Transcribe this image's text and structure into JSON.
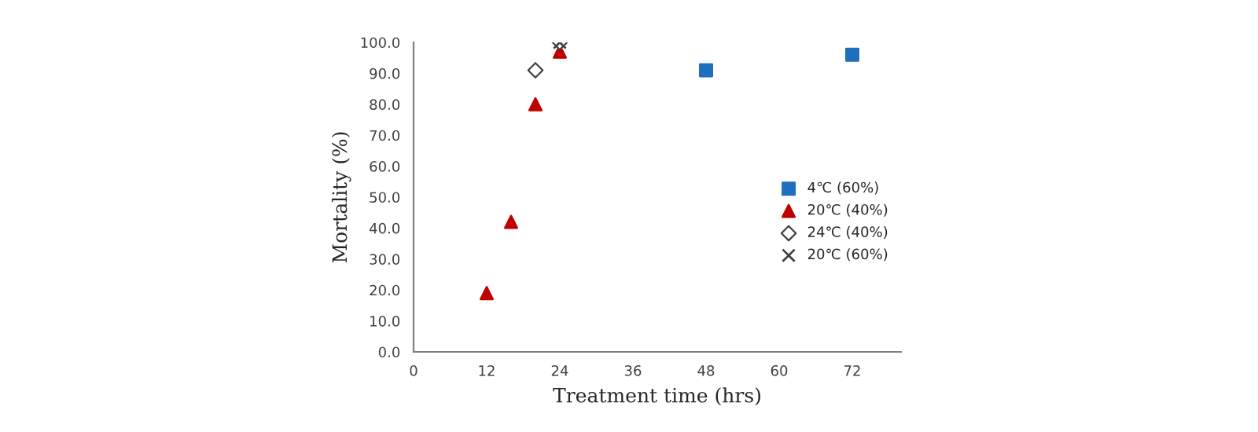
{
  "chart_data": {
    "type": "scatter",
    "xlabel": "Treatment time (hrs)",
    "ylabel": "Mortality (%)",
    "xlim": [
      0,
      80
    ],
    "xticks": [
      0,
      12,
      24,
      36,
      48,
      60,
      72
    ],
    "ylim": [
      0,
      100
    ],
    "yticks": [
      {
        "value": 0,
        "label": "0.0"
      },
      {
        "value": 10,
        "label": "10.0"
      },
      {
        "value": 20,
        "label": "20.0"
      },
      {
        "value": 30,
        "label": "30.0"
      },
      {
        "value": 40,
        "label": "40.0"
      },
      {
        "value": 50,
        "label": "50.0"
      },
      {
        "value": 60,
        "label": "60.0"
      },
      {
        "value": 70,
        "label": "70.0"
      },
      {
        "value": 80,
        "label": "80.0"
      },
      {
        "value": 90,
        "label": "90.0"
      },
      {
        "value": 100,
        "label": "100.0"
      }
    ],
    "grid": false,
    "legend": "right",
    "series": [
      {
        "name": "4℃ (60%)",
        "color": "#1f6fbf",
        "marker": "square",
        "x": [
          48,
          72
        ],
        "values": [
          91,
          96
        ]
      },
      {
        "name": "20℃ (40%)",
        "color": "#c00000",
        "marker": "triangle",
        "x": [
          12,
          16,
          20,
          24
        ],
        "values": [
          19,
          42,
          80,
          97
        ]
      },
      {
        "name": "24℃ (40%)",
        "color": "#404040",
        "marker": "diamond",
        "x": [
          20,
          24
        ],
        "values": [
          91,
          100
        ]
      },
      {
        "name": "20℃ (60%)",
        "color": "#404040",
        "marker": "cross",
        "x": [
          24
        ],
        "values": [
          100
        ]
      }
    ]
  }
}
